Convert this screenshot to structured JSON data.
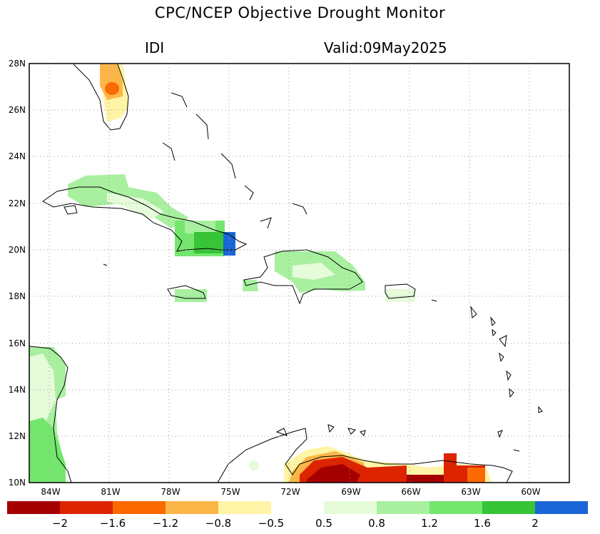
{
  "title": "CPC/NCEP Objective Drought Monitor",
  "index_label": "IDI",
  "valid_label": "Valid:09May2025",
  "map": {
    "lon_range": [
      -85,
      -58
    ],
    "lat_range": [
      10,
      28
    ],
    "lat_ticks": [
      "28N",
      "26N",
      "24N",
      "22N",
      "20N",
      "18N",
      "16N",
      "14N",
      "12N",
      "10N"
    ],
    "lon_ticks": [
      "84W",
      "81W",
      "78W",
      "75W",
      "72W",
      "69W",
      "66W",
      "63W",
      "60W"
    ],
    "gridlines": "dotted"
  },
  "colorbar": {
    "bins": [
      {
        "color": "#a50000"
      },
      {
        "color": "#dc2400"
      },
      {
        "color": "#fa6a00"
      },
      {
        "color": "#fcb648"
      },
      {
        "color": "#fff4a6"
      },
      {
        "color": "#ffffff"
      },
      {
        "color": "#e5fbd9"
      },
      {
        "color": "#a8f0a0"
      },
      {
        "color": "#74e66e"
      },
      {
        "color": "#37c437"
      },
      {
        "color": "#1a66d6"
      }
    ],
    "labels": [
      "−2",
      "−1.6",
      "−1.2",
      "−0.8",
      "−0.5",
      "0.5",
      "0.8",
      "1.2",
      "1.6",
      "2"
    ]
  }
}
